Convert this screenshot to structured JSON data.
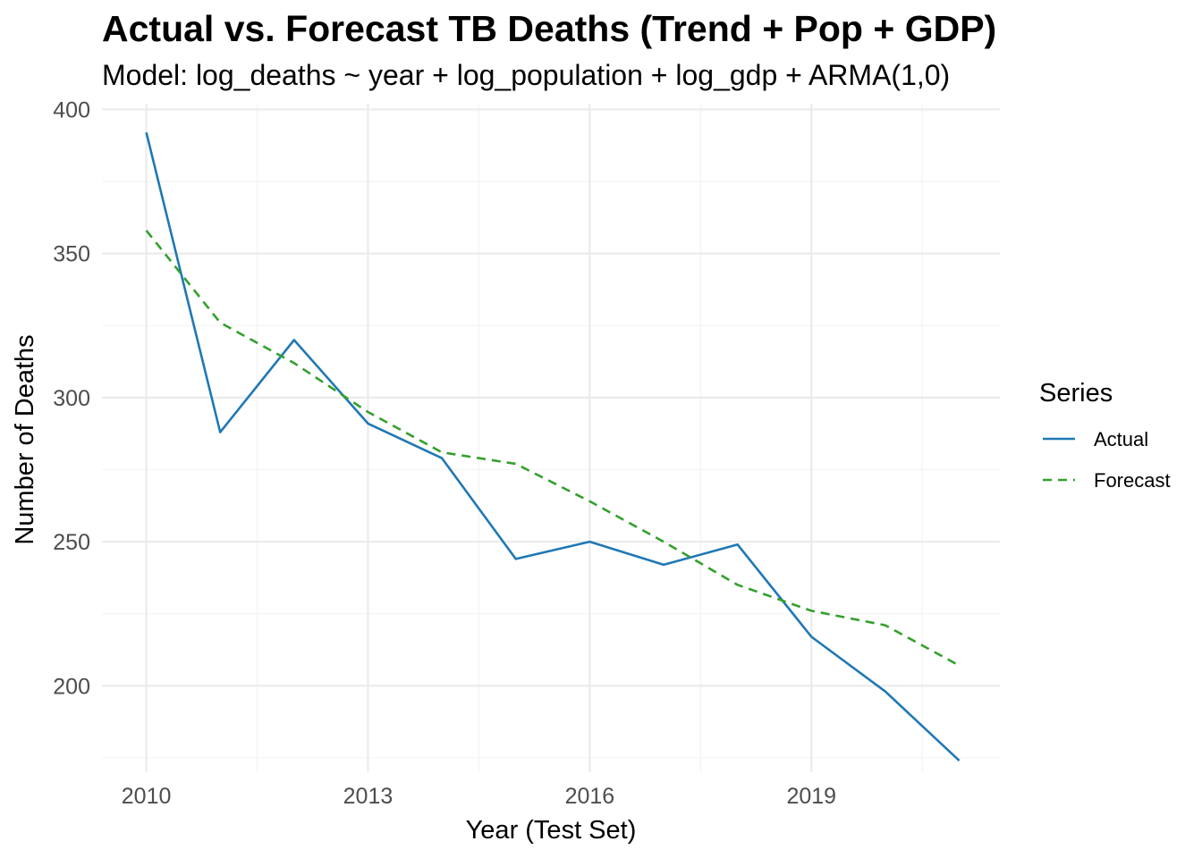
{
  "chart_data": {
    "type": "line",
    "title": "Actual vs. Forecast TB Deaths (Trend + Pop + GDP)",
    "subtitle": "Model: log_deaths ~ year + log_population + log_gdp + ARMA(1,0)",
    "xlabel": "Year (Test Set)",
    "ylabel": "Number of Deaths",
    "x": [
      2010,
      2011,
      2012,
      2013,
      2014,
      2015,
      2016,
      2017,
      2018,
      2019,
      2020,
      2021
    ],
    "xlim": [
      2009.4,
      2021.55
    ],
    "ylim": [
      170,
      402
    ],
    "x_ticks": [
      2010,
      2013,
      2016,
      2019
    ],
    "x_minor_ticks": [
      2011.5,
      2014.5,
      2017.5,
      2020.5
    ],
    "y_ticks": [
      200,
      250,
      300,
      350,
      400
    ],
    "y_minor_ticks": [
      175,
      225,
      275,
      325,
      375
    ],
    "grid": true,
    "legend": {
      "title": "Series",
      "position": "right"
    },
    "series": [
      {
        "name": "Actual",
        "color": "#1f78b4",
        "dash": "solid",
        "values": [
          392,
          288,
          320,
          291,
          279,
          244,
          250,
          242,
          249,
          217,
          198,
          174
        ]
      },
      {
        "name": "Forecast",
        "color": "#33a02c",
        "dash": "dashed",
        "values": [
          358,
          326,
          312,
          295,
          281,
          277,
          264,
          250,
          235,
          226,
          221,
          207
        ]
      }
    ]
  }
}
